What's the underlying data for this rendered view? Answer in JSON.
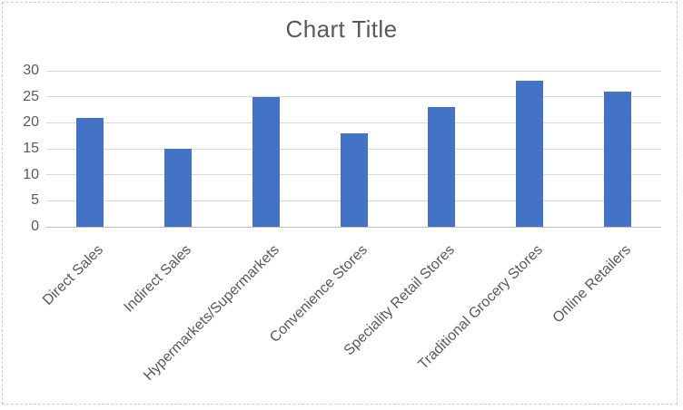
{
  "chart_data": {
    "type": "bar",
    "title": "Chart Title",
    "categories": [
      "Direct Sales",
      "Indirect Sales",
      "Hypermarkets/Supermarkets",
      "Convenience Stores",
      "Speciality Retail Stores",
      "Traditional Grocery Stores",
      "Online Retailers"
    ],
    "values": [
      21,
      15,
      25,
      18,
      23,
      28,
      26
    ],
    "xlabel": "",
    "ylabel": "",
    "ylim": [
      0,
      30
    ],
    "yticks": [
      0,
      5,
      10,
      15,
      20,
      25,
      30
    ],
    "grid": true,
    "legend": "none",
    "x_label_rotation_deg": 45,
    "colors": {
      "bar_fill": "#4472C4",
      "text": "#595959",
      "title_text": "#595959",
      "gridline": "#D9D9D9",
      "axis_line": "#BFBFBF",
      "frame_border": "#CDCDCD",
      "background": "#FFFFFF"
    }
  }
}
